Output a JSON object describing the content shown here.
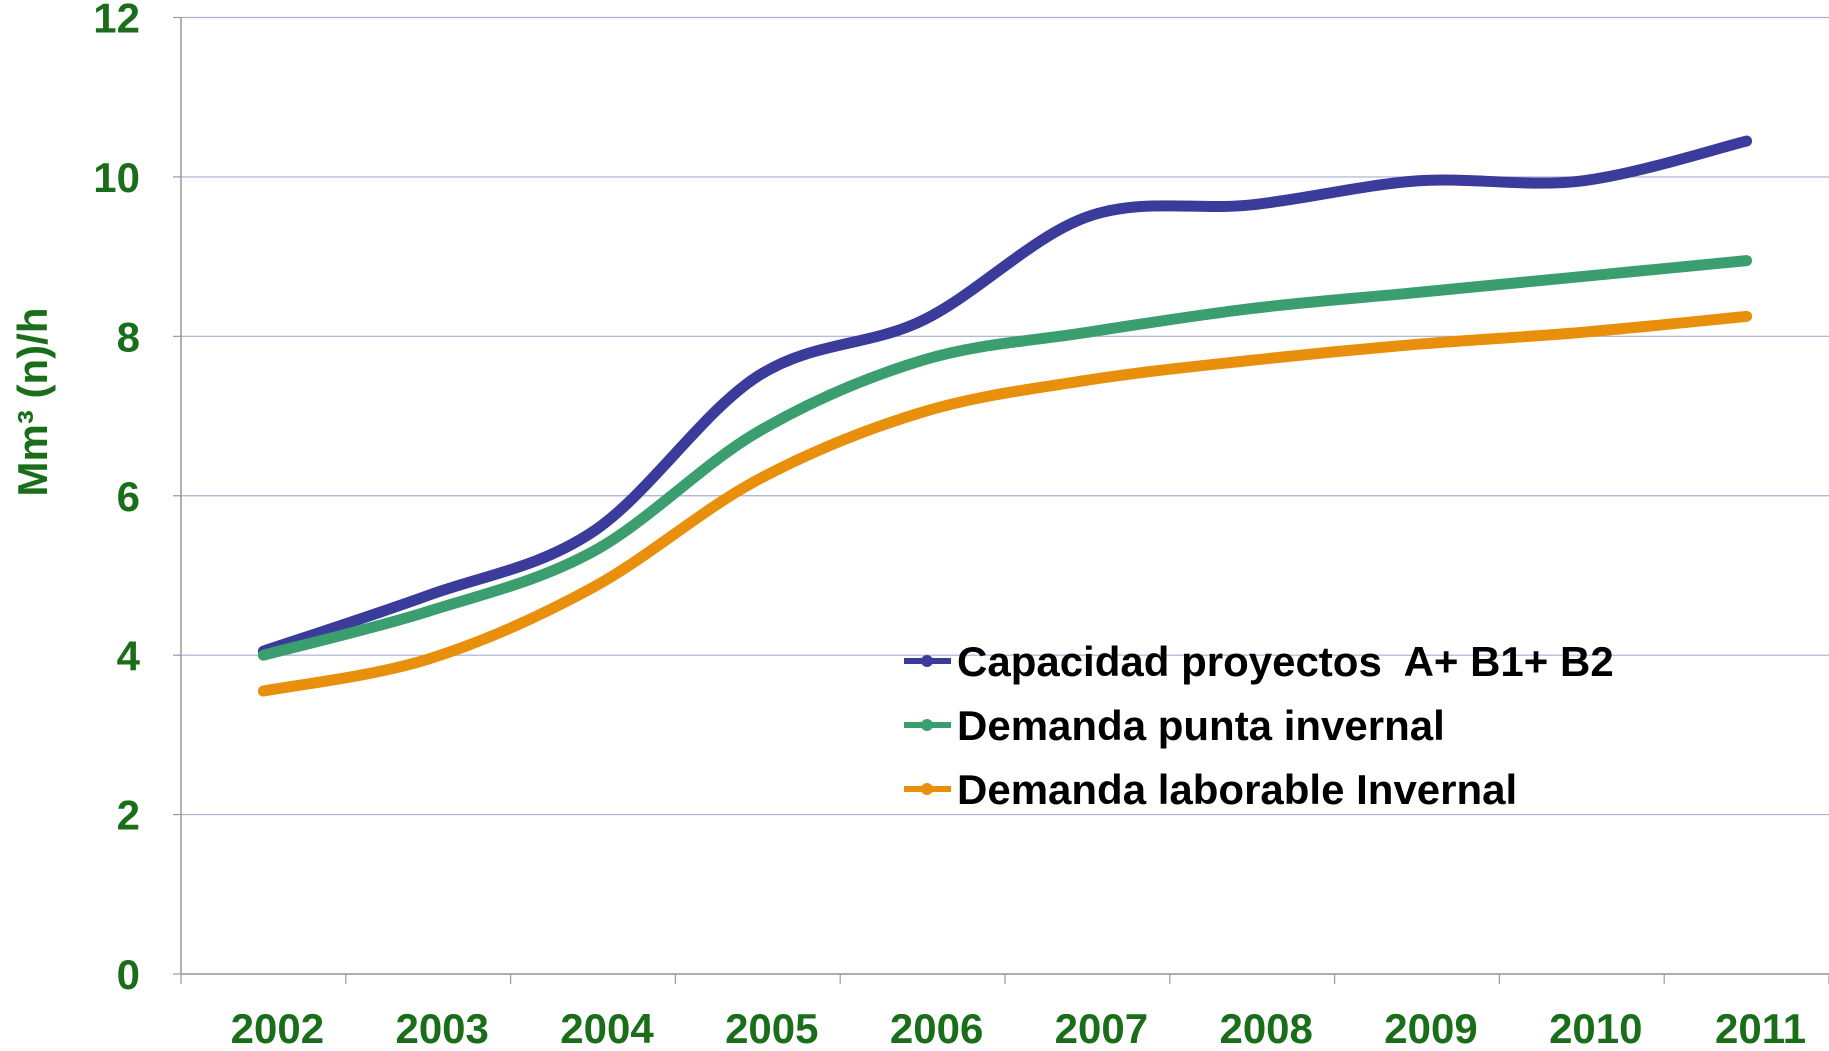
{
  "chart_data": {
    "type": "line",
    "ylabel": "Mm³ (n)/h",
    "categories": [
      "2002",
      "2003",
      "2004",
      "2005",
      "2006",
      "2007",
      "2008",
      "2009",
      "2010",
      "2011"
    ],
    "series": [
      {
        "name": "Capacidad proyectos  A+ B1+ B2",
        "color": "#3b3b9c",
        "values": [
          4.05,
          4.75,
          5.55,
          7.5,
          8.2,
          9.5,
          9.65,
          9.95,
          9.95,
          10.45
        ]
      },
      {
        "name": "Demanda punta invernal",
        "color": "#3a9e6e",
        "values": [
          4.0,
          4.55,
          5.3,
          6.8,
          7.7,
          8.05,
          8.35,
          8.55,
          8.75,
          8.95
        ]
      },
      {
        "name": "Demanda laborable Invernal",
        "color": "#e8900c",
        "values": [
          3.55,
          3.95,
          4.85,
          6.2,
          7.05,
          7.45,
          7.7,
          7.9,
          8.05,
          8.25
        ]
      }
    ],
    "ylim": [
      0,
      12
    ],
    "yticks": [
      0,
      2,
      4,
      6,
      8,
      10,
      12
    ],
    "grid": true
  }
}
